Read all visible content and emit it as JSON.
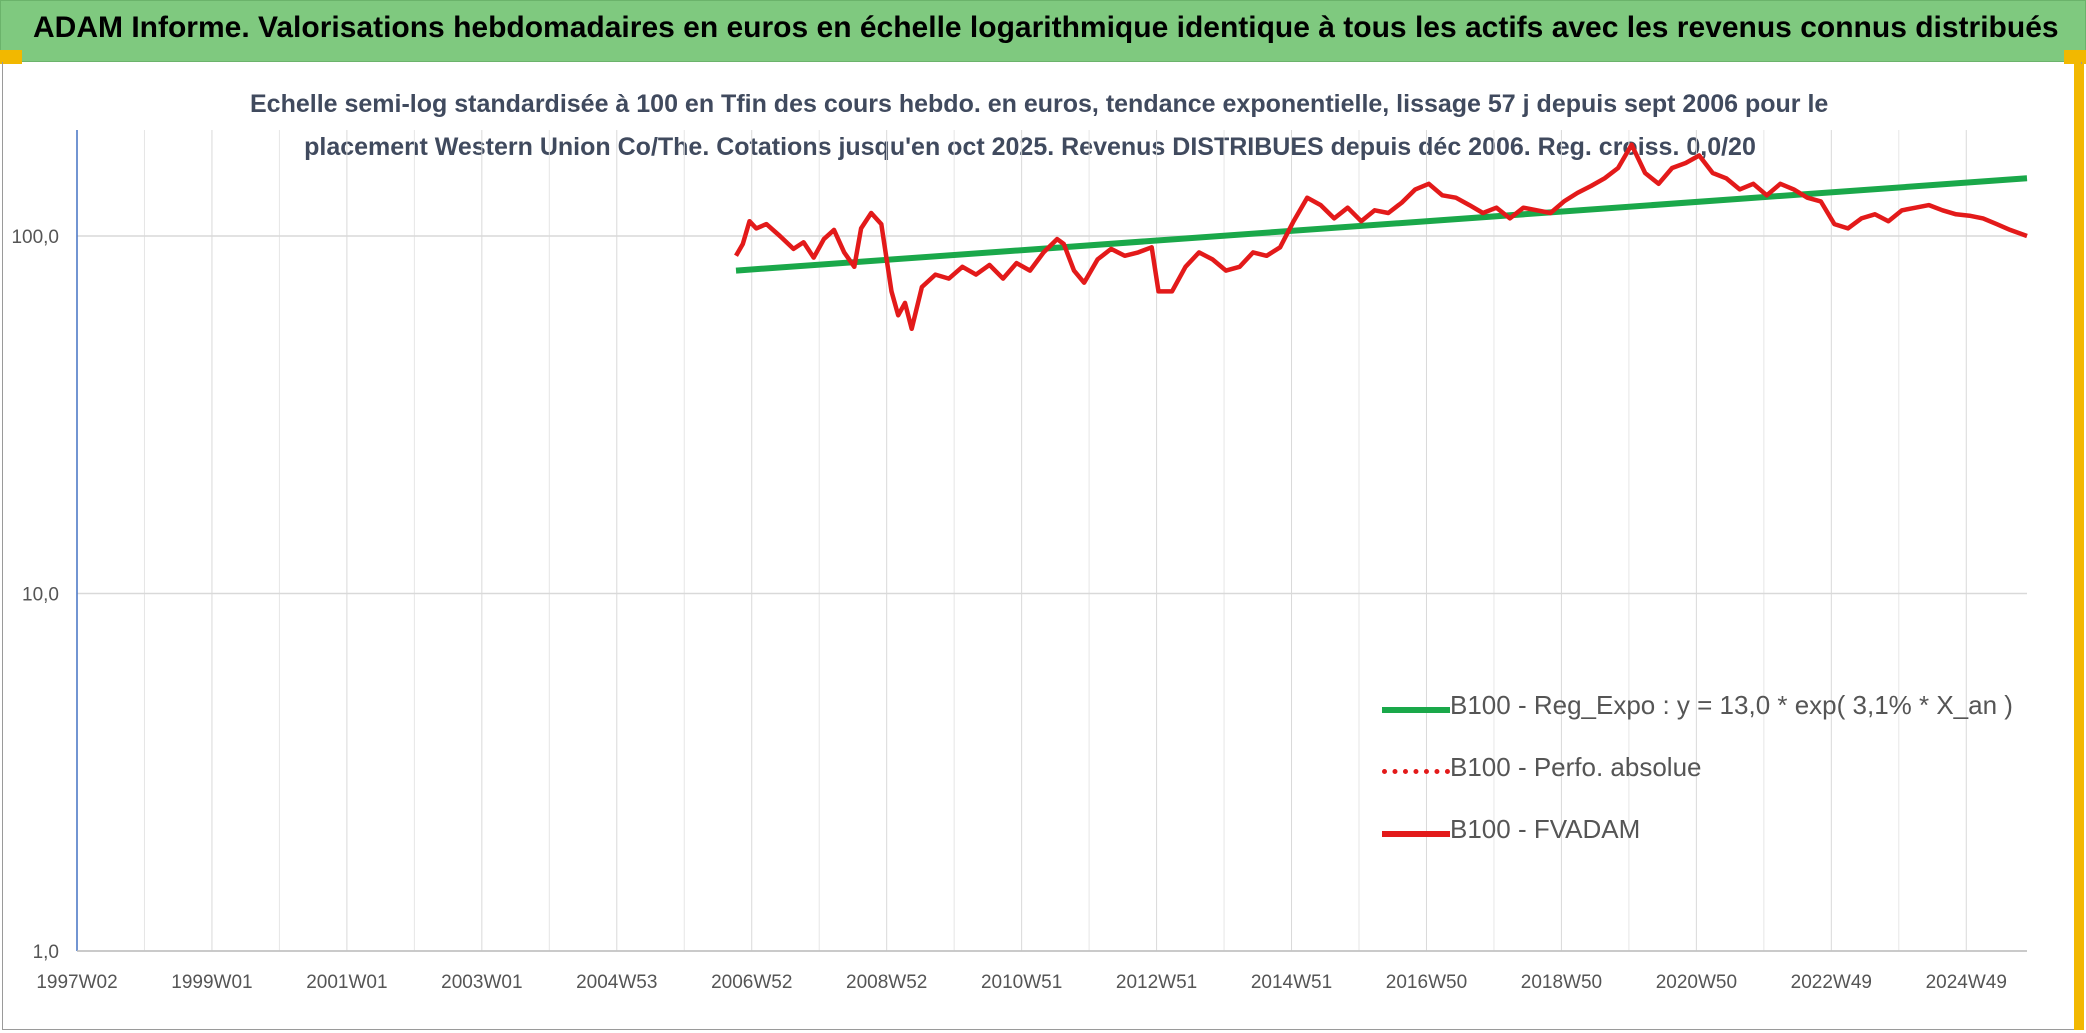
{
  "header": {
    "title": "ADAM Informe. Valorisations hebdomadaires en euros en échelle logarithmique identique à tous les actifs avec les revenus connus distribués"
  },
  "chart_data": {
    "type": "line",
    "subtitle_lines": [
      "Echelle semi-log standardisée à 100 en Tfin des cours hebdo. en euros, tendance exponentielle, lissage 57 j depuis sept 2006 pour le",
      "placement Western Union Co/The. Cotations jusqu'en oct 2025. Revenus DISTRIBUES depuis déc 2006. Reg. croiss. 0,0/20"
    ],
    "y_scale": "log",
    "ylim": [
      1,
      200
    ],
    "y_ticks": [
      "1,0",
      "10,0",
      "100,0"
    ],
    "xlim": [
      1997.0,
      2025.85
    ],
    "x_tick_labels": [
      "1997W02",
      "1999W01",
      "2001W01",
      "2003W01",
      "2004W53",
      "2006W52",
      "2008W52",
      "2010W51",
      "2012W51",
      "2014W51",
      "2016W50",
      "2018W50",
      "2020W50",
      "2022W49",
      "2024W49"
    ],
    "grid": true,
    "legend_position": "center-right",
    "series": [
      {
        "name": "B100 - Reg_Expo : y = 13,0 * exp( 3,1% *  X_an )",
        "color": "#1aa84a",
        "style": "solid",
        "x": [
          2006.75,
          2025.85
        ],
        "y": [
          80,
          145
        ]
      },
      {
        "name": "B100 - Perfo. absolue",
        "color": "#e31a1a",
        "style": "dotted",
        "x": [],
        "y": []
      },
      {
        "name": "B100 - FVADAM",
        "color": "#e31a1a",
        "style": "solid",
        "x": [
          2006.75,
          2006.85,
          2006.95,
          2007.05,
          2007.2,
          2007.4,
          2007.6,
          2007.75,
          2007.9,
          2008.05,
          2008.2,
          2008.35,
          2008.5,
          2008.6,
          2008.75,
          2008.9,
          2009.05,
          2009.15,
          2009.25,
          2009.35,
          2009.5,
          2009.7,
          2009.9,
          2010.1,
          2010.3,
          2010.5,
          2010.7,
          2010.9,
          2011.1,
          2011.3,
          2011.5,
          2011.6,
          2011.75,
          2011.9,
          2012.1,
          2012.3,
          2012.5,
          2012.7,
          2012.9,
          2013.0,
          2013.2,
          2013.4,
          2013.6,
          2013.8,
          2014.0,
          2014.2,
          2014.4,
          2014.6,
          2014.8,
          2015.0,
          2015.2,
          2015.4,
          2015.6,
          2015.8,
          2016.0,
          2016.2,
          2016.4,
          2016.6,
          2016.8,
          2017.0,
          2017.2,
          2017.4,
          2017.6,
          2017.8,
          2018.0,
          2018.2,
          2018.4,
          2018.6,
          2018.8,
          2019.0,
          2019.2,
          2019.4,
          2019.6,
          2019.8,
          2020.0,
          2020.2,
          2020.4,
          2020.6,
          2020.8,
          2021.0,
          2021.2,
          2021.4,
          2021.6,
          2021.8,
          2022.0,
          2022.2,
          2022.4,
          2022.6,
          2022.8,
          2023.0,
          2023.2,
          2023.4,
          2023.6,
          2023.8,
          2024.0,
          2024.2,
          2024.4,
          2024.6,
          2024.8,
          2025.0,
          2025.2,
          2025.4,
          2025.6,
          2025.85
        ],
        "y": [
          88,
          95,
          110,
          105,
          108,
          100,
          92,
          96,
          87,
          98,
          104,
          90,
          82,
          105,
          116,
          108,
          70,
          60,
          65,
          55,
          72,
          78,
          76,
          82,
          78,
          83,
          76,
          84,
          80,
          90,
          98,
          95,
          80,
          74,
          86,
          92,
          88,
          90,
          93,
          70,
          70,
          82,
          90,
          86,
          80,
          82,
          90,
          88,
          93,
          110,
          128,
          122,
          112,
          120,
          110,
          118,
          116,
          124,
          135,
          140,
          130,
          128,
          122,
          116,
          120,
          112,
          120,
          118,
          116,
          125,
          132,
          138,
          145,
          155,
          180,
          150,
          140,
          155,
          160,
          168,
          150,
          145,
          135,
          140,
          130,
          140,
          135,
          128,
          125,
          108,
          105,
          112,
          115,
          110,
          118,
          120,
          122,
          118,
          115,
          114,
          112,
          108,
          104,
          100
        ]
      }
    ]
  }
}
